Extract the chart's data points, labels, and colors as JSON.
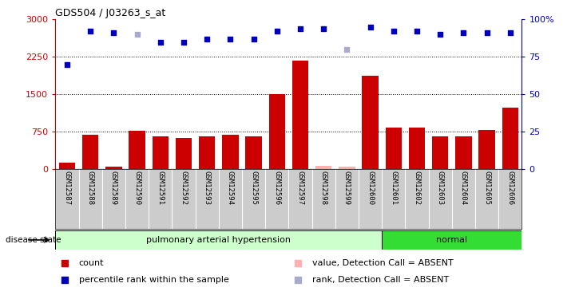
{
  "title": "GDS504 / J03263_s_at",
  "samples": [
    "GSM12587",
    "GSM12588",
    "GSM12589",
    "GSM12590",
    "GSM12591",
    "GSM12592",
    "GSM12593",
    "GSM12594",
    "GSM12595",
    "GSM12596",
    "GSM12597",
    "GSM12598",
    "GSM12599",
    "GSM12600",
    "GSM12601",
    "GSM12602",
    "GSM12603",
    "GSM12604",
    "GSM12605",
    "GSM12606"
  ],
  "count_values": [
    120,
    680,
    50,
    770,
    650,
    630,
    660,
    680,
    650,
    1500,
    2180,
    60,
    50,
    1870,
    830,
    830,
    650,
    660,
    780,
    1230
  ],
  "count_absent": [
    false,
    false,
    false,
    false,
    false,
    false,
    false,
    false,
    false,
    false,
    false,
    true,
    true,
    false,
    false,
    false,
    false,
    false,
    false,
    false
  ],
  "rank_values_pct": [
    70,
    92,
    91,
    90,
    85,
    85,
    87,
    87,
    87,
    92,
    94,
    94,
    80,
    95,
    92,
    92,
    90,
    91,
    91,
    91
  ],
  "rank_absent": [
    false,
    false,
    false,
    true,
    false,
    false,
    false,
    false,
    false,
    false,
    false,
    false,
    true,
    false,
    false,
    false,
    false,
    false,
    false,
    false
  ],
  "ylim_left": [
    0,
    3000
  ],
  "ylim_right": [
    0,
    100
  ],
  "yticks_left": [
    0,
    750,
    1500,
    2250,
    3000
  ],
  "yticks_right": [
    0,
    25,
    50,
    75,
    100
  ],
  "groups": [
    {
      "label": "pulmonary arterial hypertension",
      "samples_count": 14,
      "color": "#CCFFCC"
    },
    {
      "label": "normal",
      "samples_count": 6,
      "color": "#33DD33"
    }
  ],
  "bar_color_present": "#CC0000",
  "bar_color_absent": "#FFB0B0",
  "rank_color_present": "#0000BB",
  "rank_color_absent": "#AAAACC",
  "tick_bg_color": "#CCCCCC",
  "legend_items": [
    {
      "label": "count",
      "color": "#CC0000"
    },
    {
      "label": "percentile rank within the sample",
      "color": "#0000BB"
    },
    {
      "label": "value, Detection Call = ABSENT",
      "color": "#FFB0B0"
    },
    {
      "label": "rank, Detection Call = ABSENT",
      "color": "#AAAACC"
    }
  ],
  "disease_state_label": "disease state"
}
